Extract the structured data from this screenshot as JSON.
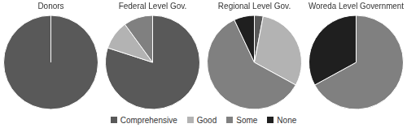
{
  "chart_data": [
    {
      "type": "pie",
      "title": "Donors",
      "categories": [
        "Comprehensive",
        "Good",
        "Some",
        "None"
      ],
      "values": [
        100,
        0,
        0,
        0
      ],
      "colors": [
        "#595959",
        "#b3b3b3",
        "#808080",
        "#1f1f1f"
      ],
      "legend": "bottom"
    },
    {
      "type": "pie",
      "title": "Federal Level Gov.",
      "categories": [
        "Comprehensive",
        "Good",
        "Some",
        "None"
      ],
      "values": [
        80,
        10,
        10,
        0
      ],
      "colors": [
        "#595959",
        "#b3b3b3",
        "#808080",
        "#1f1f1f"
      ],
      "legend": "bottom"
    },
    {
      "type": "pie",
      "title": "Regional Level Gov.",
      "categories": [
        "Comprehensive",
        "Good",
        "Some",
        "None"
      ],
      "values": [
        3,
        30,
        60,
        7
      ],
      "colors": [
        "#595959",
        "#b3b3b3",
        "#808080",
        "#1f1f1f"
      ],
      "legend": "bottom"
    },
    {
      "type": "pie",
      "title": "Woreda Level Government",
      "categories": [
        "Comprehensive",
        "Good",
        "Some",
        "None"
      ],
      "values": [
        0,
        0,
        67,
        33
      ],
      "colors": [
        "#595959",
        "#b3b3b3",
        "#808080",
        "#1f1f1f"
      ],
      "legend": "bottom"
    }
  ]
}
